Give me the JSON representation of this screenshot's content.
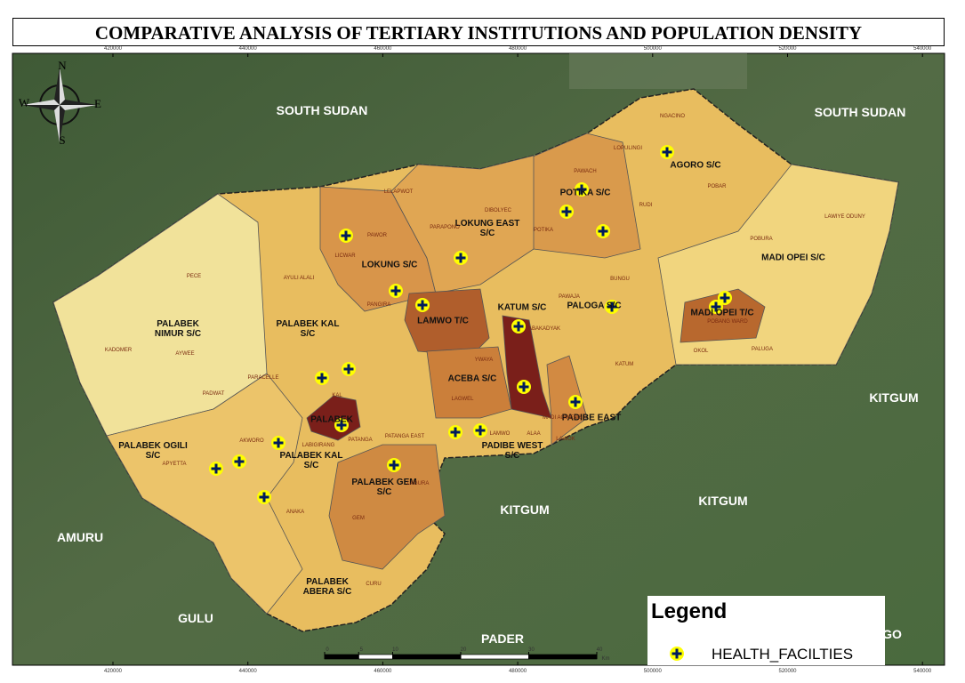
{
  "title": "COMPARATIVE ANALYSIS OF TERTIARY INSTITUTIONS  AND POPULATION DENSITY",
  "compass": {
    "n": "N",
    "s": "S",
    "e": "E",
    "w": "W"
  },
  "regions": [
    "SOUTH SUDAN",
    "SOUTH SUDAN",
    "KITGUM",
    "KITGUM",
    "KITGUM",
    "AMURU",
    "GULU",
    "PADER",
    "GO"
  ],
  "subcounties": [
    "LOKUNG EAST S/C",
    "POTIKA S/C",
    "AGORO S/C",
    "LOKUNG S/C",
    "MADI OPEI S/C",
    "PALABEK NIMUR S/C",
    "PALABEK KAL S/C",
    "LAMWO T/C",
    "KATUM S/C",
    "PALOGA S/C",
    "MADI OPEI T/C",
    "ACEBA S/C",
    "PADIBE EAST",
    "PALABEK",
    "PADIBE WEST S/C",
    "PALABEK OGILI S/C",
    "PALABEK KAL S/C",
    "PALABEK GEM S/C",
    "PALABEK ABERA S/C"
  ],
  "parishes": [
    "PECE",
    "KADOMER",
    "AYWEE",
    "PARACELLE",
    "PADWAT",
    "AYULI ALALI",
    "LICWAR",
    "PAWOR",
    "PANGIRA",
    "LELAPWOT",
    "PARAPONO",
    "DIBOLYEC",
    "POTIKA",
    "PAWACH",
    "LOPULINGI",
    "NGACINO",
    "RUDI",
    "POBAR",
    "LAWIYE ODUNY",
    "POBURA",
    "OKOL",
    "PALUGA",
    "PAWAJA",
    "BUNGU",
    "KATUM",
    "ABAKADYAK",
    "YWAYA",
    "LAGWEL",
    "ALAA",
    "LAWOK",
    "MADI AGWENG",
    "LAMWO",
    "PATANGA",
    "PATANGA EAST",
    "LABIGIRANG",
    "AKWORO",
    "APYETTA",
    "LAGURA",
    "GEM",
    "ANAKA",
    "CURU",
    "POBANG WARD",
    "KAL"
  ],
  "x_coords": [
    420000,
    440000,
    460000,
    480000,
    500000,
    520000,
    540000
  ],
  "scale": {
    "ticks": [
      0,
      5,
      10,
      20,
      30,
      40
    ],
    "unit": "Km"
  },
  "legend": {
    "title": "Legend",
    "items": [
      "HEALTH_FACILTIES"
    ]
  }
}
